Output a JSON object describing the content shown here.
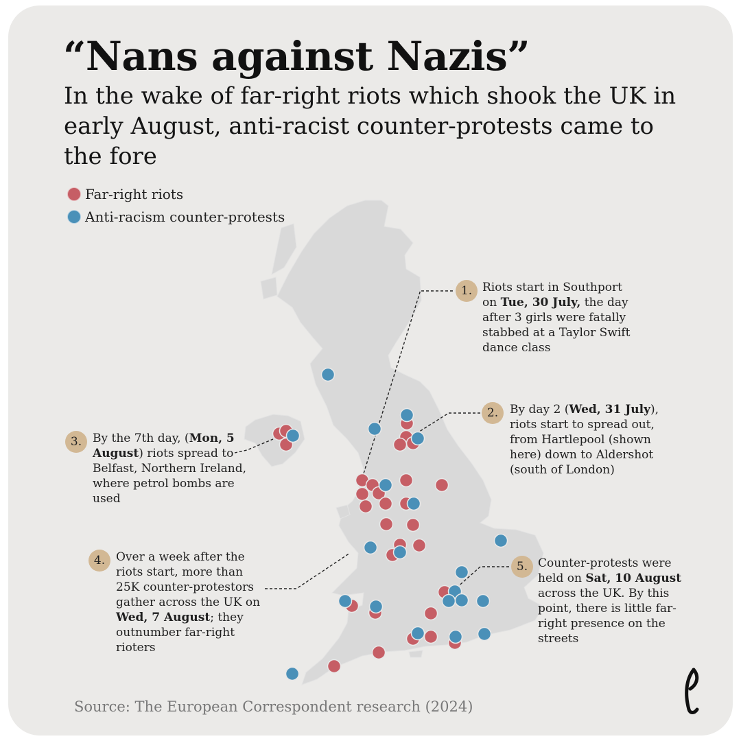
{
  "header": {
    "title": "“Nans against Nazis”",
    "subtitle": "In the wake of far-right riots which shook the UK in early August, anti-racist counter-protests came to the fore"
  },
  "legend": {
    "items": [
      {
        "label": "Far-right riots",
        "color": "#c65e65"
      },
      {
        "label": "Anti-racism counter-protests",
        "color": "#4a90b8"
      }
    ]
  },
  "colors": {
    "background": "#ebeae8",
    "land": "#d9d9d9",
    "riot": "#c65e65",
    "counter_protest": "#4a90b8",
    "badge": "#d2b894"
  },
  "annotations": [
    {
      "number": "1.",
      "text": [
        [
          "Riots start in Southport on ",
          false
        ],
        [
          "Tue, 30 July,",
          true
        ],
        [
          " the day after 3 girls were fatally stabbed at a Taylor Swift dance class",
          false
        ]
      ]
    },
    {
      "number": "2.",
      "text": [
        [
          "By day 2 (",
          false
        ],
        [
          "Wed, 31 July",
          true
        ],
        [
          "), riots start to spread out, from Hartlepool (shown here) down to Aldershot (south of London)",
          false
        ]
      ]
    },
    {
      "number": "3.",
      "text": [
        [
          "By the 7th day, (",
          false
        ],
        [
          "Mon, 5 August",
          true
        ],
        [
          ") riots spread to Belfast, Northern Ireland, where petrol bombs are used",
          false
        ]
      ]
    },
    {
      "number": "4.",
      "text": [
        [
          "Over a week after the riots start, more than 25K counter-protestors gather across the UK on ",
          false
        ],
        [
          "Wed, 7 August",
          true
        ],
        [
          "; they outnumber far-right rioters",
          false
        ]
      ]
    },
    {
      "number": "5.",
      "text": [
        [
          "Counter-protests were held on ",
          false
        ],
        [
          "Sat, 10 August",
          true
        ],
        [
          " across the UK. By this point, there is little far-right presence on the streets",
          false
        ]
      ]
    }
  ],
  "map": {
    "region": "United Kingdom and Ireland",
    "markers": {
      "far_right_riots": 37,
      "counter_protests": 25
    }
  },
  "footer": {
    "source": "Source: The European Correspondent research (2024)",
    "logo": "The European Correspondent logo"
  }
}
